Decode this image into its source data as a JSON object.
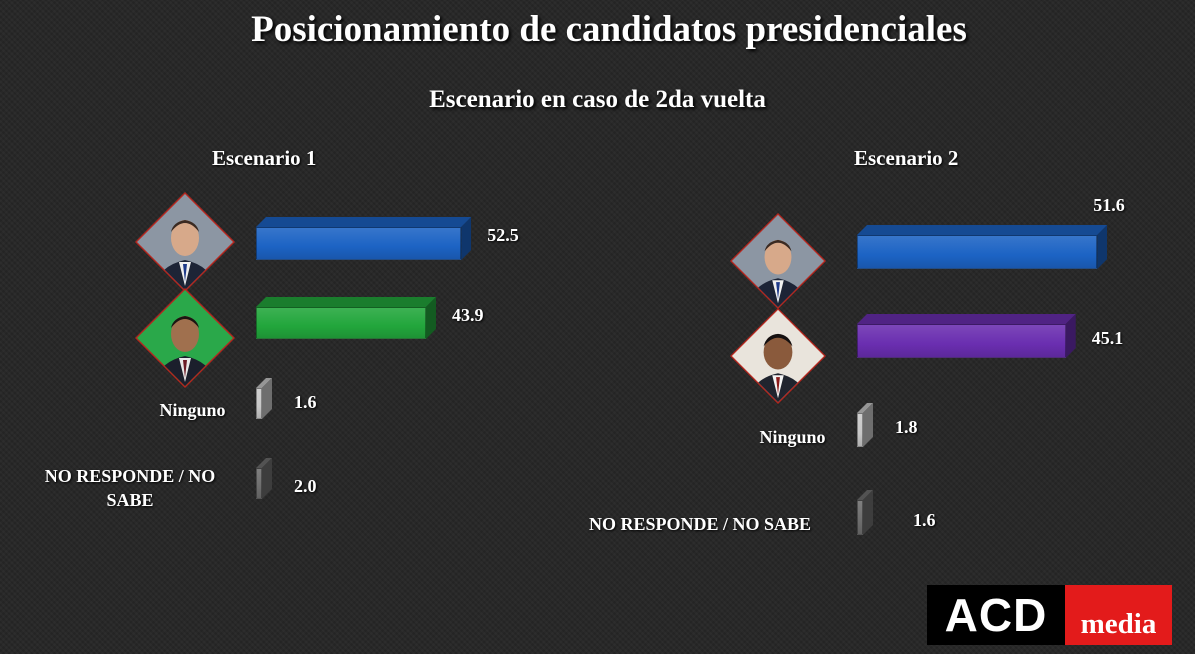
{
  "title": "Posicionamiento de candidatos presidenciales",
  "subtitle": "Escenario en caso de 2da vuelta",
  "logo": {
    "left": "ACD",
    "right": "media"
  },
  "colors": {
    "blue": "#1c63c4",
    "green": "#22a63c",
    "purple": "#6a2eb0",
    "light_gray": "#c8c8c8",
    "dark_gray": "#6e6e6e",
    "logo_red": "#e31b1b"
  },
  "chart_data": [
    {
      "type": "bar",
      "orientation": "horizontal",
      "title": "Escenario 1",
      "categories": [
        "",
        "",
        "Ninguno",
        "NO RESPONDE / NO SABE"
      ],
      "values": [
        52.5,
        43.9,
        1.6,
        2.0
      ],
      "value_labels": [
        "52.5",
        "43.9",
        "1.6",
        "2.0"
      ],
      "bar_colors": [
        "#1c63c4",
        "#22a63c",
        "#c8c8c8",
        "#6e6e6e"
      ],
      "category_icons": [
        "candidate-photo-abinader",
        "candidate-photo-fernandez",
        "",
        ""
      ],
      "value_scale_max": 55,
      "grid": false
    },
    {
      "type": "bar",
      "orientation": "horizontal",
      "title": "Escenario 2",
      "categories": [
        "",
        "",
        "Ninguno",
        "NO RESPONDE / NO SABE"
      ],
      "values": [
        51.6,
        45.1,
        1.8,
        1.6
      ],
      "value_labels": [
        "51.6",
        "45.1",
        "1.8",
        "1.6"
      ],
      "bar_colors": [
        "#1c63c4",
        "#6a2eb0",
        "#c8c8c8",
        "#6e6e6e"
      ],
      "category_icons": [
        "candidate-photo-abinader",
        "candidate-photo-martinez",
        "",
        ""
      ],
      "value_scale_max": 55,
      "grid": false
    }
  ]
}
